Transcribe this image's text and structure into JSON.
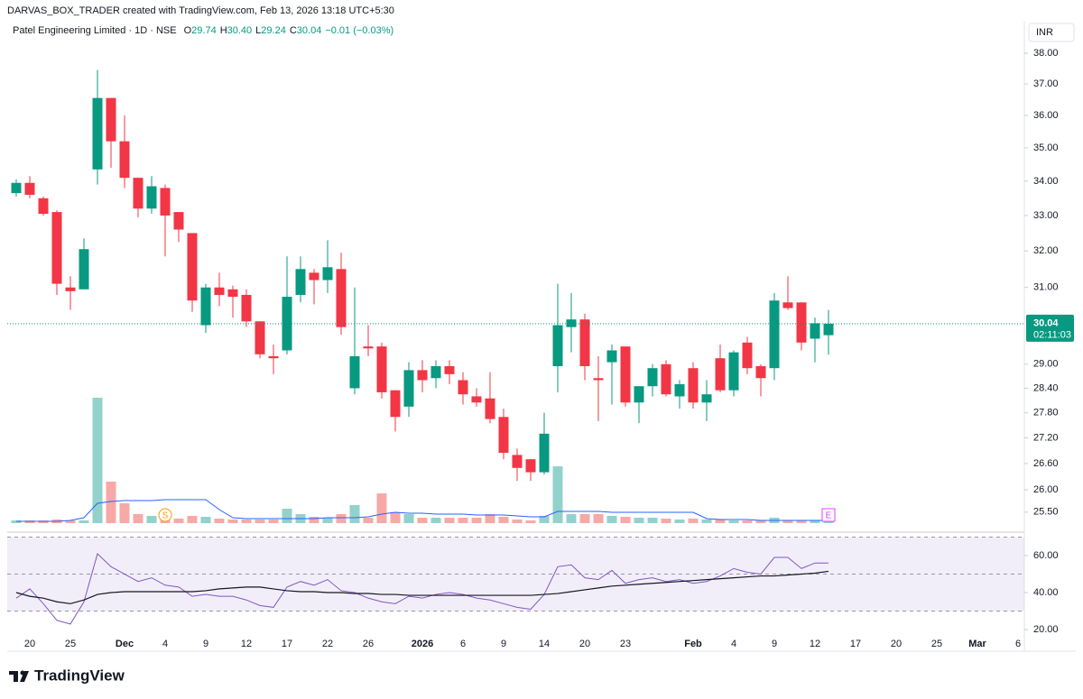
{
  "chart_data": {
    "type": "candlestick",
    "attribution": "DARVAS_BOX_TRADER created with TradingView.com, Feb 13, 2026 13:18 UTC+5:30",
    "title": "Patel Engineering Limited · 1D · NSE",
    "ohlc_legend": [
      {
        "label": "O",
        "value": "29.74"
      },
      {
        "label": "H",
        "value": "30.40"
      },
      {
        "label": "L",
        "value": "29.24"
      },
      {
        "label": "C",
        "value": "30.04"
      }
    ],
    "change": "−0.01 (−0.03%)",
    "currency": "INR",
    "last_price": 30.04,
    "countdown": "02:11:03",
    "brand": "TradingView",
    "log_scale": true,
    "up_color": "#089981",
    "down_color": "#f23645",
    "volume_up_color": "#92d2cc",
    "volume_down_color": "#f7a9a7",
    "volume_ma_color": "#2962ff",
    "rsi_color": "#7e57c2",
    "rsi_ma_color": "#131722",
    "categories": [
      null,
      "20",
      null,
      null,
      "25",
      null,
      null,
      null,
      "Dec",
      null,
      null,
      "4",
      null,
      null,
      "9",
      null,
      null,
      "12",
      null,
      null,
      "17",
      null,
      null,
      "22",
      null,
      null,
      "26",
      null,
      null,
      null,
      "2026",
      null,
      null,
      "6",
      null,
      null,
      "9",
      null,
      null,
      "14",
      null,
      null,
      "20",
      null,
      null,
      "23",
      null,
      null,
      null,
      null,
      "Feb",
      null,
      null,
      "4",
      null,
      null,
      "9",
      null,
      null,
      "12",
      null,
      null,
      "17",
      null,
      null,
      "20",
      null,
      null,
      "25",
      null,
      null,
      "Mar",
      null,
      null,
      "6"
    ],
    "open": [
      33.65,
      33.95,
      33.5,
      33.1,
      31.0,
      30.95,
      34.35,
      36.55,
      35.2,
      34.1,
      33.2,
      33.8,
      33.1,
      32.5,
      30.0,
      31.0,
      30.95,
      30.8,
      30.1,
      29.2,
      29.35,
      30.8,
      31.4,
      31.2,
      31.5,
      28.4,
      29.45,
      29.45,
      28.35,
      27.95,
      28.85,
      28.65,
      28.95,
      28.6,
      28.2,
      28.15,
      27.7,
      26.8,
      26.7,
      26.4,
      28.95,
      29.95,
      30.15,
      28.65,
      29.05,
      29.45,
      28.05,
      28.45,
      29.0,
      28.2,
      28.9,
      28.05,
      29.15,
      28.35,
      29.55,
      28.95,
      28.9,
      30.6,
      30.6,
      29.65,
      29.74,
      null,
      null,
      null,
      null,
      null,
      null,
      null,
      null,
      null,
      null,
      null,
      null,
      null,
      null
    ],
    "high": [
      34.05,
      34.15,
      33.55,
      33.15,
      31.3,
      32.35,
      37.45,
      36.55,
      36.0,
      34.1,
      34.15,
      33.9,
      33.1,
      32.5,
      31.1,
      31.4,
      31.05,
      30.95,
      30.1,
      29.5,
      31.85,
      31.85,
      31.5,
      32.3,
      31.95,
      31.0,
      30.0,
      29.55,
      28.35,
      29.05,
      29.1,
      29.1,
      29.1,
      28.8,
      28.4,
      28.8,
      27.9,
      26.95,
      26.7,
      27.8,
      31.1,
      30.85,
      30.3,
      29.2,
      29.5,
      29.45,
      28.45,
      29.0,
      29.1,
      28.6,
      29.05,
      28.6,
      29.5,
      29.35,
      29.7,
      29.0,
      30.85,
      31.3,
      30.6,
      30.2,
      30.4,
      null,
      null,
      null,
      null,
      null,
      null,
      null,
      null,
      null,
      null,
      null,
      null,
      null,
      null
    ],
    "low": [
      33.55,
      33.5,
      33.0,
      30.8,
      30.4,
      30.95,
      33.9,
      34.4,
      33.8,
      32.95,
      33.05,
      31.85,
      32.25,
      30.35,
      29.8,
      30.5,
      30.2,
      29.95,
      29.15,
      28.75,
      29.25,
      30.6,
      30.55,
      30.85,
      29.75,
      28.25,
      29.2,
      28.15,
      27.35,
      27.7,
      28.3,
      28.4,
      28.5,
      28.0,
      27.95,
      27.55,
      26.7,
      26.2,
      26.2,
      26.35,
      28.3,
      29.3,
      28.6,
      27.6,
      28.0,
      27.95,
      27.55,
      28.2,
      28.2,
      27.9,
      27.9,
      27.6,
      28.3,
      28.2,
      28.75,
      28.2,
      28.6,
      30.4,
      29.35,
      29.05,
      29.24,
      null,
      null,
      null,
      null,
      null,
      null,
      null,
      null,
      null,
      null,
      null,
      null,
      null,
      null
    ],
    "close": [
      33.95,
      33.6,
      33.05,
      31.1,
      30.9,
      32.05,
      36.55,
      35.2,
      34.1,
      33.2,
      33.85,
      33.0,
      32.6,
      30.65,
      31.0,
      30.8,
      30.75,
      30.1,
      29.25,
      29.15,
      30.75,
      31.5,
      31.2,
      31.55,
      29.95,
      29.2,
      29.4,
      28.3,
      27.7,
      28.85,
      28.6,
      28.95,
      28.75,
      28.25,
      28.05,
      27.65,
      26.85,
      26.5,
      26.4,
      27.3,
      30.0,
      30.15,
      28.95,
      28.6,
      29.35,
      28.05,
      28.45,
      28.9,
      28.25,
      28.5,
      28.05,
      28.25,
      28.35,
      29.3,
      28.9,
      28.65,
      30.65,
      30.45,
      29.55,
      30.05,
      30.04,
      null,
      null,
      null,
      null,
      null,
      null,
      null,
      null,
      null,
      null,
      null,
      null,
      null,
      null
    ],
    "volume": [
      3,
      3,
      3,
      4,
      3,
      3,
      139,
      46,
      22,
      10,
      8,
      7,
      5,
      8,
      7,
      5,
      4,
      4,
      4,
      4,
      16,
      10,
      7,
      6,
      10,
      20,
      6,
      33,
      12,
      10,
      6,
      6,
      6,
      6,
      6,
      10,
      7,
      4,
      3,
      8,
      63,
      10,
      10,
      10,
      8,
      7,
      6,
      6,
      5,
      4,
      5,
      4,
      4,
      3,
      3,
      3,
      6,
      3,
      3,
      3,
      2,
      null,
      null,
      null,
      null,
      null,
      null,
      null,
      null,
      null,
      null,
      null,
      null,
      null,
      null
    ],
    "volume_ma": [
      2,
      2,
      2,
      2,
      3,
      6,
      22,
      24,
      25,
      25,
      25,
      26,
      26,
      26,
      26,
      15,
      6,
      5,
      5,
      5,
      5,
      5,
      5,
      6,
      6,
      6,
      7,
      10,
      12,
      11,
      11,
      10,
      10,
      10,
      9,
      9,
      9,
      8,
      7,
      7,
      13,
      13,
      13,
      13,
      12,
      12,
      12,
      12,
      12,
      12,
      12,
      5,
      4,
      4,
      4,
      3,
      3,
      3,
      3,
      3,
      3,
      null,
      null,
      null,
      null,
      null,
      null,
      null,
      null,
      null,
      null,
      null,
      null,
      null,
      null
    ],
    "rsi": [
      37,
      42,
      34,
      25,
      23,
      35,
      61,
      54,
      50,
      46,
      48,
      44,
      43,
      38,
      39,
      38,
      38,
      36,
      33,
      32,
      43,
      46,
      44,
      47,
      41,
      40,
      37,
      35,
      34,
      38,
      37,
      39,
      40,
      39,
      37,
      36,
      34,
      32,
      31,
      39,
      54,
      55,
      48,
      47,
      52,
      45,
      47,
      48,
      46,
      47,
      45,
      46,
      49,
      53,
      51,
      50,
      59,
      59,
      53,
      56,
      56,
      null,
      null,
      null,
      null,
      null,
      null,
      null,
      null,
      null,
      null,
      null,
      null,
      null,
      null
    ],
    "rsi_ma": [
      40,
      38,
      37,
      35,
      34,
      36,
      39,
      40,
      40.5,
      40.5,
      40.5,
      40.5,
      40.5,
      40.5,
      41,
      42,
      42.5,
      43,
      43,
      42,
      41,
      40.5,
      40.5,
      40,
      40,
      39.5,
      39.5,
      39,
      39,
      38.5,
      38.5,
      38.5,
      38.5,
      38.5,
      38.5,
      38.5,
      38.5,
      38.5,
      38.5,
      39,
      39.5,
      40.5,
      41.5,
      42.5,
      43.5,
      44,
      44.5,
      45,
      45.5,
      46,
      46.5,
      47,
      47.5,
      48,
      48.5,
      49,
      49,
      49.5,
      50,
      50.5,
      51.5,
      null,
      null,
      null,
      null,
      null,
      null,
      null,
      null,
      null,
      null,
      null,
      null,
      null,
      null
    ],
    "events": [
      {
        "label": "S",
        "at": 11,
        "color": "#ff9800"
      },
      {
        "label": "E",
        "at": 60,
        "color": "#e040fb"
      }
    ],
    "ylim": [
      25.1,
      38.42
    ],
    "yticks": [
      {
        "value": 25.5,
        "label": "25.50"
      },
      {
        "value": 26,
        "label": "26.00"
      },
      {
        "value": 26.6,
        "label": "26.60"
      },
      {
        "value": 27.2,
        "label": "27.20"
      },
      {
        "value": 27.8,
        "label": "27.80"
      },
      {
        "value": 28.4,
        "label": "28.40"
      },
      {
        "value": 29,
        "label": "29.00"
      },
      {
        "value": 31,
        "label": "31.00"
      },
      {
        "value": 32,
        "label": "32.00"
      },
      {
        "value": 33,
        "label": "33.00"
      },
      {
        "value": 34,
        "label": "34.00"
      },
      {
        "value": 35,
        "label": "35.00"
      },
      {
        "value": 36,
        "label": "36.00"
      },
      {
        "value": 37,
        "label": "37.00"
      },
      {
        "value": 38,
        "label": "38.00"
      }
    ],
    "rsi_ylim": [
      16.6,
      71.7
    ],
    "rsi_yticks": [
      {
        "value": 20,
        "label": "20.00"
      },
      {
        "value": 40,
        "label": "40.00"
      },
      {
        "value": 60,
        "label": "60.00"
      }
    ],
    "rsi_bands": [
      30,
      50,
      70
    ]
  }
}
